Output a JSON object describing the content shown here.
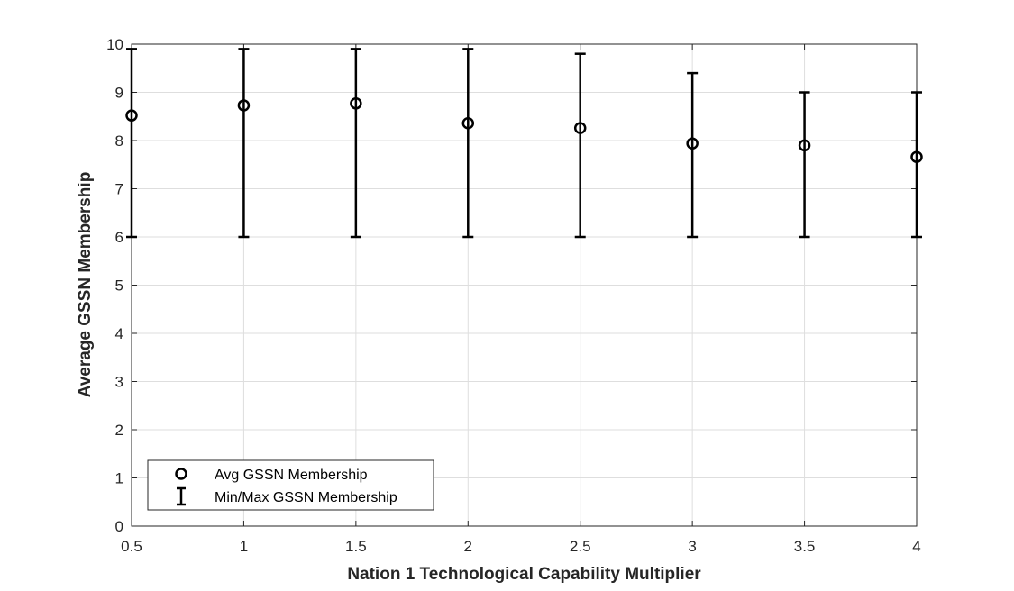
{
  "chart_data": {
    "type": "scatter",
    "title": "",
    "xlabel": "Nation 1 Technological Capability Multiplier",
    "ylabel": "Average GSSN Membership",
    "xlim": [
      0.5,
      4
    ],
    "ylim": [
      0,
      10
    ],
    "xticks": [
      "0.5",
      "1",
      "1.5",
      "2",
      "2.5",
      "3",
      "3.5",
      "4"
    ],
    "yticks": [
      "0",
      "1",
      "2",
      "3",
      "4",
      "5",
      "6",
      "7",
      "8",
      "9",
      "10"
    ],
    "grid": true,
    "legend_position": "bottom-left",
    "x": [
      0.5,
      1.0,
      1.5,
      2.0,
      2.5,
      3.0,
      3.5,
      4.0
    ],
    "series": [
      {
        "name": "Avg GSSN Membership",
        "marker": "circle",
        "values": [
          8.52,
          8.73,
          8.77,
          8.36,
          8.26,
          7.94,
          7.9,
          7.66
        ]
      },
      {
        "name": "Min/Max GSSN Membership",
        "marker": "errorbar",
        "min": [
          6,
          6,
          6,
          6,
          6,
          6,
          6,
          6
        ],
        "max": [
          9.9,
          9.9,
          9.9,
          9.9,
          9.8,
          9.4,
          9.0,
          9.0
        ]
      }
    ],
    "colors": {
      "marker": "#000000",
      "grid": "#dedede",
      "axis": "#262626"
    }
  }
}
